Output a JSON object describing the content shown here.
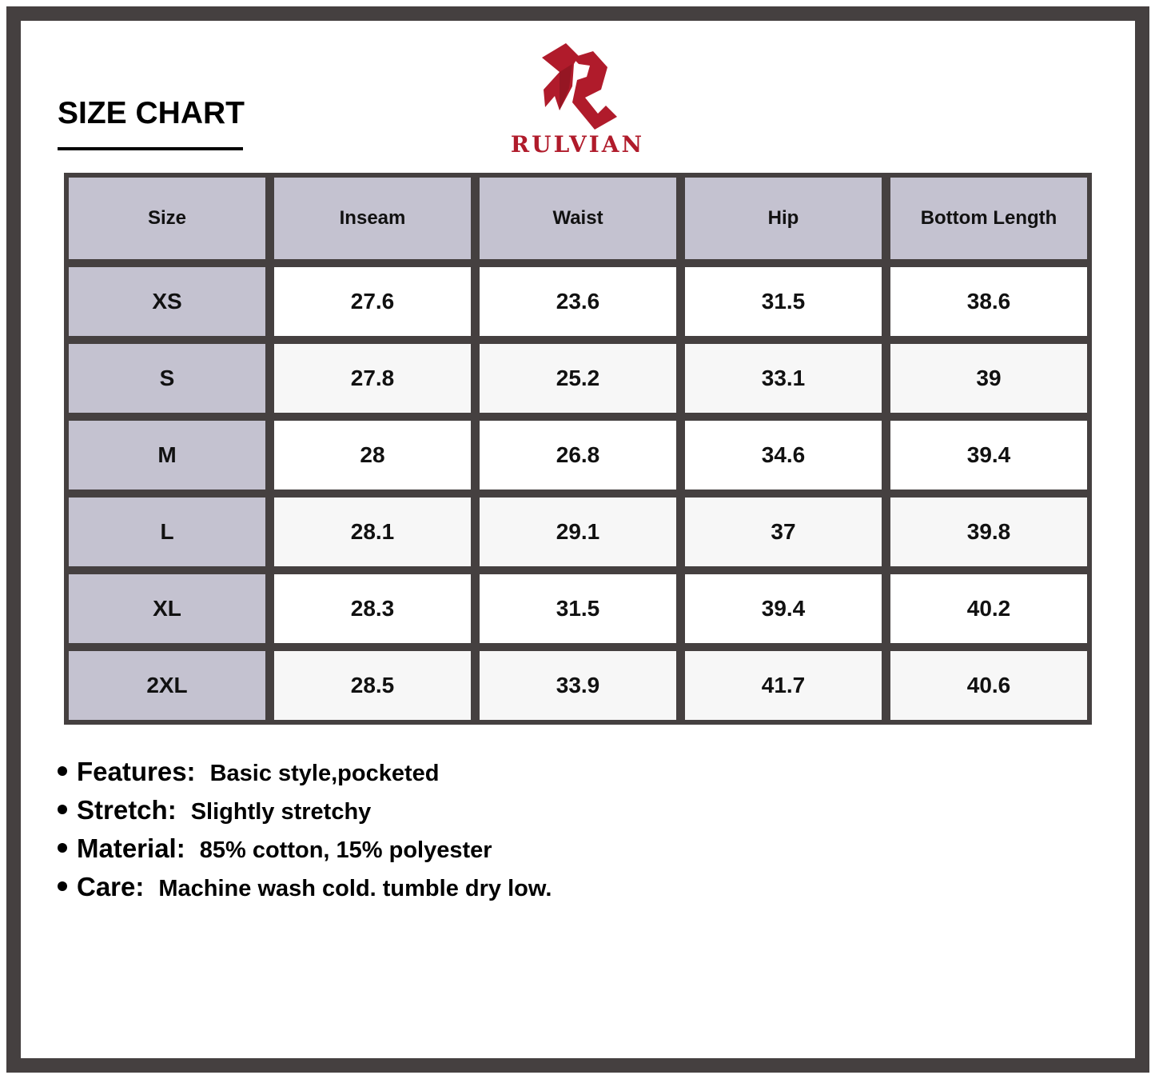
{
  "title": "SIZE CHART",
  "brand": {
    "name": "RULVIAN",
    "color": "#b01b2b",
    "logo_icon": "stylized-R-logo"
  },
  "colors": {
    "frame": "#454040",
    "size_column": "#c4c2d0",
    "alt_row": "#f7f7f7"
  },
  "table": {
    "headers": [
      "Size",
      "Inseam",
      "Waist",
      "Hip",
      "Bottom Length"
    ],
    "rows": [
      [
        "XS",
        "27.6",
        "23.6",
        "31.5",
        "38.6"
      ],
      [
        "S",
        "27.8",
        "25.2",
        "33.1",
        "39"
      ],
      [
        "M",
        "28",
        "26.8",
        "34.6",
        "39.4"
      ],
      [
        "L",
        "28.1",
        "29.1",
        "37",
        "39.8"
      ],
      [
        "XL",
        "28.3",
        "31.5",
        "39.4",
        "40.2"
      ],
      [
        "2XL",
        "28.5",
        "33.9",
        "41.7",
        "40.6"
      ]
    ]
  },
  "notes": [
    {
      "label": "Features:",
      "value": "Basic style,pocketed"
    },
    {
      "label": "Stretch:",
      "value": "Slightly stretchy"
    },
    {
      "label": "Material:",
      "value": "85% cotton, 15% polyester"
    },
    {
      "label": "Care:",
      "value": "Machine wash cold. tumble dry low."
    }
  ]
}
